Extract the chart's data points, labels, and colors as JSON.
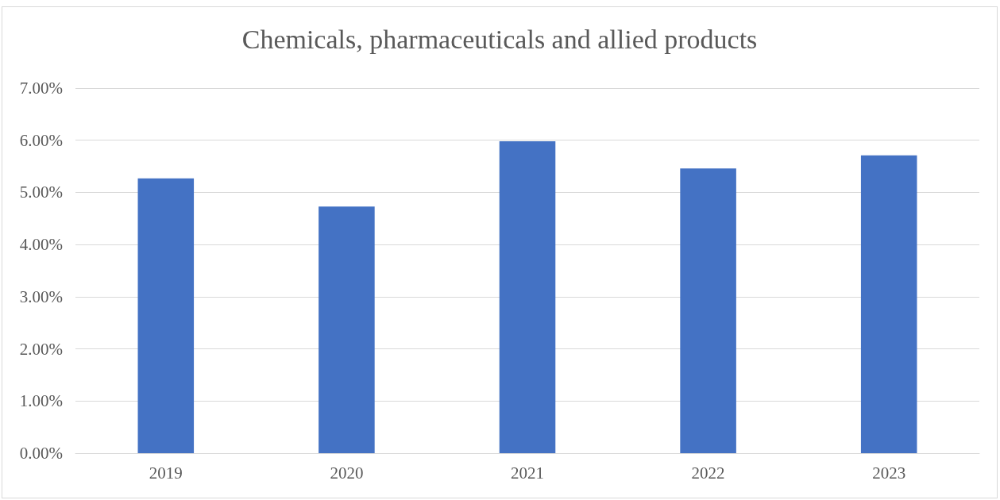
{
  "chart_data": {
    "type": "bar",
    "title": "Chemicals, pharmaceuticals and allied products",
    "categories": [
      "2019",
      "2020",
      "2021",
      "2022",
      "2023"
    ],
    "values": [
      5.27,
      4.73,
      5.98,
      5.46,
      5.71
    ],
    "color": "#4472c4",
    "ylim": [
      0,
      7
    ],
    "yticks": [
      {
        "value": 0,
        "label": "0.00%"
      },
      {
        "value": 1,
        "label": "1.00%"
      },
      {
        "value": 2,
        "label": "2.00%"
      },
      {
        "value": 3,
        "label": "3.00%"
      },
      {
        "value": 4,
        "label": "4.00%"
      },
      {
        "value": 5,
        "label": "5.00%"
      },
      {
        "value": 6,
        "label": "6.00%"
      },
      {
        "value": 7,
        "label": "7.00%"
      }
    ],
    "grid": "y"
  }
}
